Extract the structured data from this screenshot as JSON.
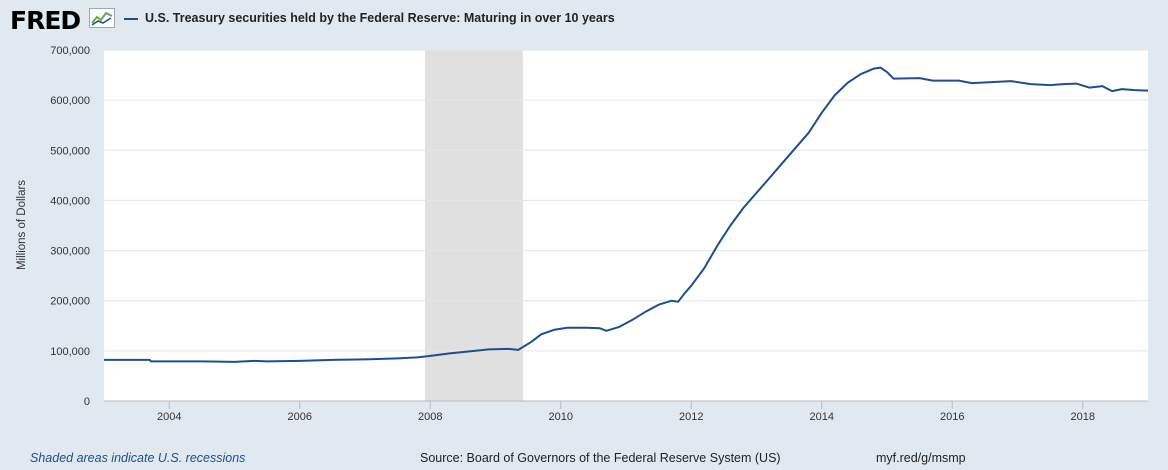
{
  "header": {
    "logo_text": "FRED",
    "logo_icon": "trend-chart-icon",
    "title": "U.S. Treasury securities held by the Federal Reserve: Maturing in over 10 years"
  },
  "footer": {
    "recession_note": "Shaded areas indicate U.S. recessions",
    "source": "Source: Board of Governors of the Federal Reserve System (US)",
    "short_url": "myf.red/g/msmp"
  },
  "colors": {
    "background": "#e1e9f0",
    "plot_background": "#ffffff",
    "series_line": "#1f4e8c",
    "recession_shade": "#e0e0e0",
    "grid": "#e6e6e6"
  },
  "chart_data": {
    "type": "line",
    "title": "U.S. Treasury securities held by the Federal Reserve: Maturing in over 10 years",
    "ylabel": "Millions of Dollars",
    "xlabel": "",
    "xlim": [
      2003.0,
      2019.0
    ],
    "ylim": [
      0,
      700000
    ],
    "x_ticks": [
      2004,
      2006,
      2008,
      2010,
      2012,
      2014,
      2016,
      2018
    ],
    "x_tick_labels": [
      "2004",
      "2006",
      "2008",
      "2010",
      "2012",
      "2014",
      "2016",
      "2018"
    ],
    "y_ticks": [
      0,
      100000,
      200000,
      300000,
      400000,
      500000,
      600000,
      700000
    ],
    "y_tick_labels": [
      "0",
      "100,000",
      "200,000",
      "300,000",
      "400,000",
      "500,000",
      "600,000",
      "700,000"
    ],
    "grid": true,
    "recessions": [
      {
        "start": 2007.92,
        "end": 2009.42
      }
    ],
    "series": [
      {
        "values": [
          [
            2003.0,
            82000
          ],
          [
            2003.7,
            82000
          ],
          [
            2003.72,
            79000
          ],
          [
            2004.5,
            79000
          ],
          [
            2005.0,
            78000
          ],
          [
            2005.3,
            80000
          ],
          [
            2005.5,
            79000
          ],
          [
            2006.0,
            80000
          ],
          [
            2006.5,
            82000
          ],
          [
            2007.0,
            83000
          ],
          [
            2007.5,
            85000
          ],
          [
            2007.8,
            87000
          ],
          [
            2008.0,
            90000
          ],
          [
            2008.3,
            95000
          ],
          [
            2008.6,
            99000
          ],
          [
            2008.9,
            103000
          ],
          [
            2009.2,
            104000
          ],
          [
            2009.35,
            102000
          ],
          [
            2009.55,
            118000
          ],
          [
            2009.7,
            133000
          ],
          [
            2009.9,
            142000
          ],
          [
            2010.1,
            146000
          ],
          [
            2010.4,
            146000
          ],
          [
            2010.6,
            145000
          ],
          [
            2010.7,
            140000
          ],
          [
            2010.9,
            148000
          ],
          [
            2011.1,
            162000
          ],
          [
            2011.3,
            178000
          ],
          [
            2011.5,
            192000
          ],
          [
            2011.7,
            200000
          ],
          [
            2011.8,
            198000
          ],
          [
            2011.9,
            215000
          ],
          [
            2012.0,
            230000
          ],
          [
            2012.2,
            265000
          ],
          [
            2012.4,
            310000
          ],
          [
            2012.6,
            350000
          ],
          [
            2012.8,
            385000
          ],
          [
            2013.0,
            415000
          ],
          [
            2013.2,
            445000
          ],
          [
            2013.4,
            475000
          ],
          [
            2013.6,
            505000
          ],
          [
            2013.8,
            535000
          ],
          [
            2014.0,
            575000
          ],
          [
            2014.2,
            610000
          ],
          [
            2014.4,
            635000
          ],
          [
            2014.6,
            652000
          ],
          [
            2014.8,
            663000
          ],
          [
            2014.9,
            665000
          ],
          [
            2015.0,
            656000
          ],
          [
            2015.1,
            643000
          ],
          [
            2015.5,
            644000
          ],
          [
            2015.7,
            639000
          ],
          [
            2016.1,
            639000
          ],
          [
            2016.3,
            634000
          ],
          [
            2016.6,
            636000
          ],
          [
            2016.9,
            638000
          ],
          [
            2017.2,
            632000
          ],
          [
            2017.5,
            630000
          ],
          [
            2017.7,
            632000
          ],
          [
            2017.9,
            633000
          ],
          [
            2018.1,
            625000
          ],
          [
            2018.3,
            628000
          ],
          [
            2018.45,
            618000
          ],
          [
            2018.6,
            622000
          ],
          [
            2018.8,
            620000
          ],
          [
            2019.0,
            619000
          ]
        ]
      }
    ]
  }
}
